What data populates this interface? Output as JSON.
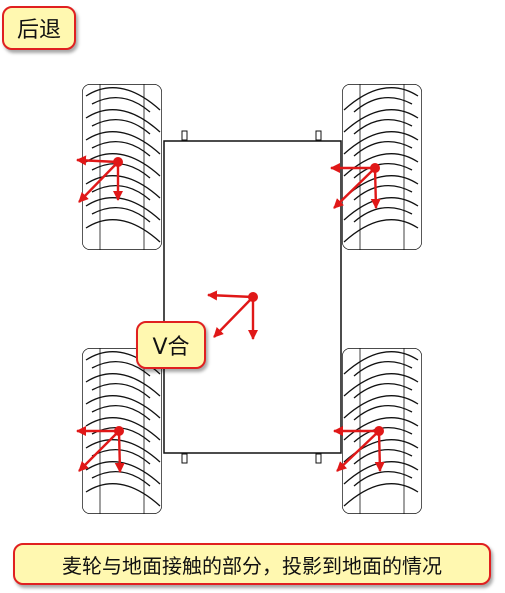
{
  "labels": {
    "title": "后退",
    "resultant": "V合",
    "caption": "麦轮与地面接触的部分，投影到地面的情况"
  },
  "colors": {
    "label_fill": "#fff8b0",
    "label_border": "#e02020",
    "arrow": "#e01818",
    "outline": "#111111"
  },
  "wheels": [
    {
      "name": "front-left",
      "roller_slant": "left"
    },
    {
      "name": "front-right",
      "roller_slant": "right"
    },
    {
      "name": "rear-left",
      "roller_slant": "left"
    },
    {
      "name": "rear-right",
      "roller_slant": "right"
    }
  ],
  "icons": [
    "force-vector-arrow"
  ]
}
